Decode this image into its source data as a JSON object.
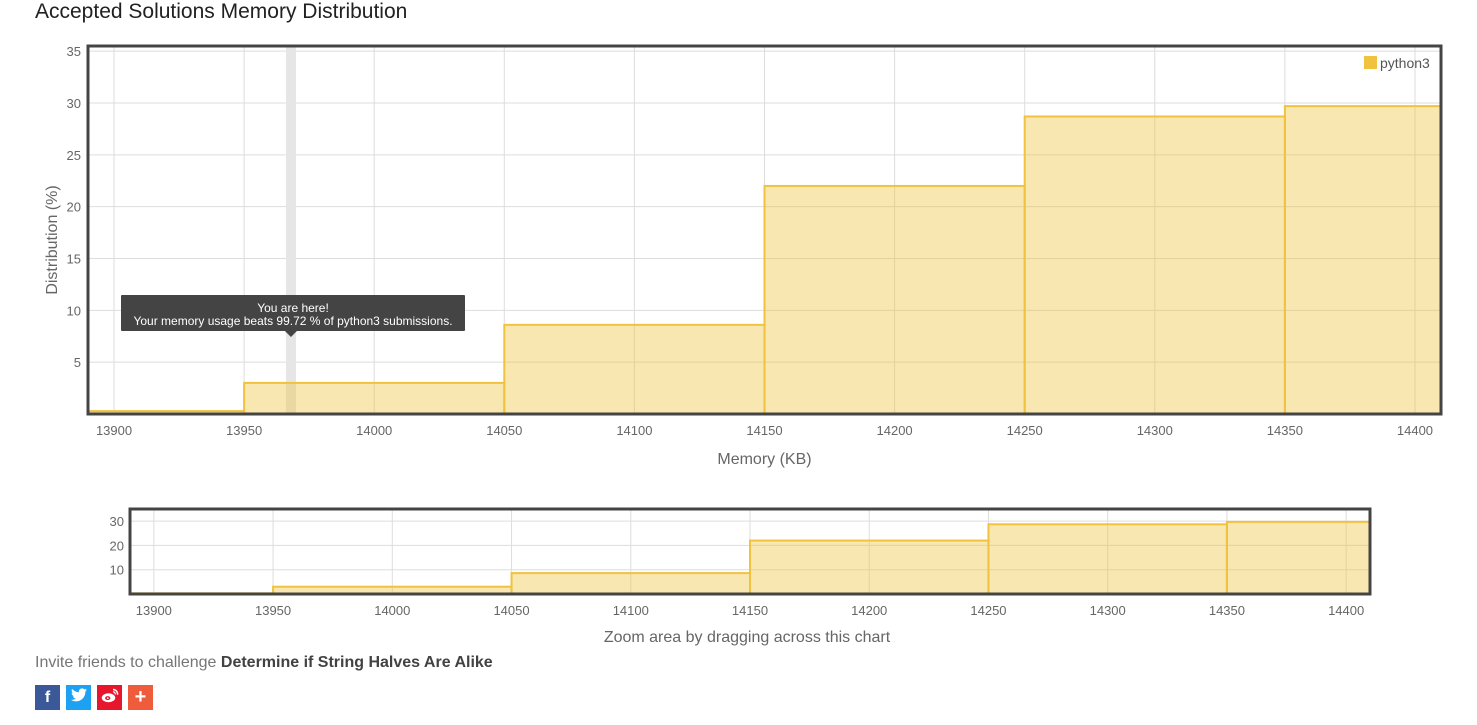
{
  "page_title": "Accepted Solutions Memory Distribution",
  "invite": {
    "prefix": "Invite friends to challenge ",
    "problem": "Determine if String Halves Are Alike"
  },
  "share_icons": [
    {
      "name": "facebook-icon",
      "glyph": "f",
      "color": "#3b5998"
    },
    {
      "name": "twitter-icon",
      "glyph": "t",
      "color": "#1da1f2"
    },
    {
      "name": "weibo-icon",
      "glyph": "w",
      "color": "#e6162d"
    },
    {
      "name": "more-share-icon",
      "glyph": "+",
      "color": "#ee5c3c"
    }
  ],
  "chart_data": {
    "type": "bar",
    "xlabel": "Memory (KB)",
    "ylabel": "Distribution (%)",
    "xlim": [
      13890,
      14410
    ],
    "ylim": [
      0,
      35.5
    ],
    "x_ticks": [
      13900,
      13950,
      14000,
      14050,
      14100,
      14150,
      14200,
      14250,
      14300,
      14350,
      14400
    ],
    "y_ticks": [
      5,
      10,
      15,
      20,
      25,
      30,
      35
    ],
    "legend": "python3",
    "legend_position": "top-right",
    "grid": true,
    "color": "#f0c23f",
    "bins": [
      {
        "from": 13890,
        "to": 13950,
        "value": 0.28
      },
      {
        "from": 13950,
        "to": 14050,
        "value": 3.0
      },
      {
        "from": 14050,
        "to": 14150,
        "value": 8.6
      },
      {
        "from": 14150,
        "to": 14250,
        "value": 22.0
      },
      {
        "from": 14250,
        "to": 14350,
        "value": 28.7
      },
      {
        "from": 14350,
        "to": 14410,
        "value": 29.7
      }
    ],
    "marker_x": 13968,
    "tooltip": {
      "line1": "You are here!",
      "line2": "Your memory usage beats 99.72 % of python3 submissions."
    },
    "navigator": {
      "y_ticks": [
        10,
        20,
        30
      ],
      "ylim": [
        0,
        35
      ],
      "caption": "Zoom area by dragging across this chart"
    }
  }
}
